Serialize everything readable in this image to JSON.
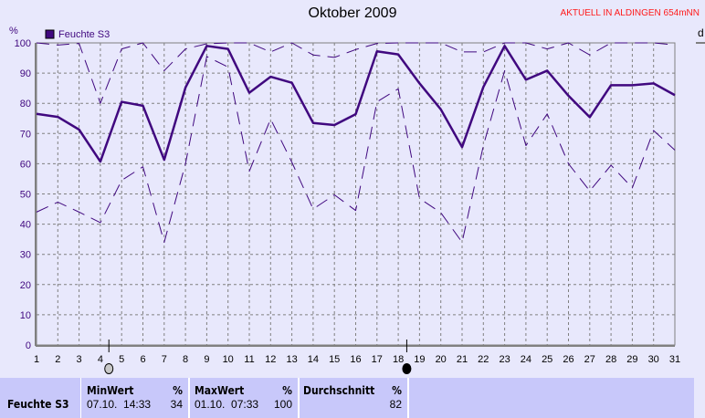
{
  "header": {
    "title": "Oktober 2009",
    "badge": "AKTUELL IN ALDINGEN 654mNN"
  },
  "colors": {
    "series": "#40087f",
    "grid": "#808080",
    "background": "#e8e8fc",
    "table": "#c8c8fa",
    "badge": "#ff1a1a"
  },
  "chart_data": {
    "type": "line",
    "title": "Oktober 2009",
    "ylabel": "%",
    "ylim": [
      0,
      100
    ],
    "yticks": [
      0,
      10,
      20,
      30,
      40,
      50,
      60,
      70,
      80,
      90,
      100
    ],
    "x": [
      1,
      2,
      3,
      4,
      5,
      6,
      7,
      8,
      9,
      10,
      11,
      12,
      13,
      14,
      15,
      16,
      17,
      18,
      19,
      20,
      21,
      22,
      23,
      24,
      25,
      26,
      27,
      28,
      29,
      30,
      31
    ],
    "grid": true,
    "legend": "top-left",
    "legend_label": "Feuchte S3",
    "series": [
      {
        "name": "Feuchte S3",
        "style": "solid",
        "values": [
          76.5,
          75.5,
          71.3,
          60.7,
          80.5,
          79.2,
          61.3,
          85.2,
          99,
          98,
          83.5,
          88.8,
          86.8,
          73.5,
          72.8,
          76.4,
          97.2,
          96.2,
          86.6,
          78,
          65.5,
          85.4,
          99,
          87.8,
          90.8,
          82.5,
          75.4,
          86,
          86,
          86.6,
          82.7
        ]
      },
      {
        "style": "dashed-max",
        "values": [
          100,
          99.3,
          99.8,
          80,
          98,
          100,
          90.8,
          98,
          99.7,
          100,
          100,
          97,
          100,
          96,
          95.2,
          97.8,
          99.8,
          100,
          100,
          100,
          97,
          97,
          100,
          100,
          98,
          100,
          96,
          100,
          100,
          100,
          99.3
        ]
      },
      {
        "style": "dashed-min",
        "values": [
          44,
          47.3,
          44,
          40.5,
          54.5,
          59,
          34,
          60,
          95.5,
          92,
          57.5,
          74.8,
          60.5,
          45,
          49.7,
          44.5,
          80.5,
          84.8,
          48.5,
          43.8,
          34,
          66,
          90.8,
          66,
          76.5,
          60,
          51,
          59.5,
          52,
          71,
          64.5
        ]
      }
    ],
    "moon_phases": [
      {
        "day": 4.4,
        "phase": "full-moon"
      },
      {
        "day": 18.4,
        "phase": "new-moon"
      }
    ]
  },
  "table": {
    "row_label": "Feuchte S3",
    "min": {
      "label": "MinWert",
      "unit": "%",
      "time": "07.10.  14:33",
      "value": "34"
    },
    "max": {
      "label": "MaxWert",
      "unit": "%",
      "time": "01.10.  07:33",
      "value": "100"
    },
    "avg": {
      "label": "Durchschnitt",
      "unit": "%",
      "value": "82"
    }
  }
}
